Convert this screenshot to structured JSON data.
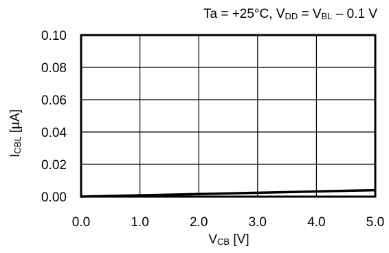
{
  "chart_data": {
    "type": "line",
    "title": {
      "segments": [
        {
          "text": "Ta = +25°C, V",
          "sub": false
        },
        {
          "text": "DD",
          "sub": true
        },
        {
          "text": " = V",
          "sub": false
        },
        {
          "text": "BL",
          "sub": true
        },
        {
          "text": " – 0.1 V",
          "sub": false
        }
      ]
    },
    "xlabel": {
      "segments": [
        {
          "text": "V",
          "sub": false
        },
        {
          "text": "CB",
          "sub": true
        },
        {
          "text": " [V]",
          "sub": false
        }
      ]
    },
    "ylabel": {
      "segments": [
        {
          "text": "I",
          "sub": false
        },
        {
          "text": "CBL",
          "sub": true
        },
        {
          "text": " [µA]",
          "sub": false
        }
      ]
    },
    "xlim": [
      0,
      5
    ],
    "ylim": [
      0,
      0.1
    ],
    "x_ticks": [
      "0.0",
      "1.0",
      "2.0",
      "3.0",
      "4.0",
      "5.0"
    ],
    "y_ticks": [
      "0.00",
      "0.02",
      "0.04",
      "0.06",
      "0.08",
      "0.10"
    ],
    "grid": true,
    "series": [
      {
        "x": [
          0,
          1,
          2,
          3,
          4,
          5
        ],
        "y": [
          0.0,
          0.0008,
          0.0016,
          0.0024,
          0.0032,
          0.004
        ],
        "color": "#000000"
      }
    ]
  }
}
